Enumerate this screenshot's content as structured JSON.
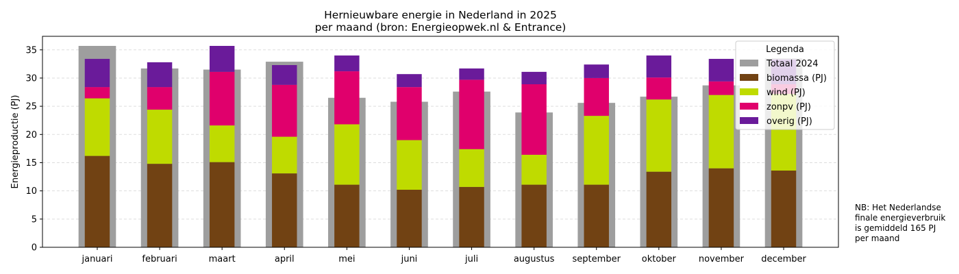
{
  "chart_data": {
    "type": "bar",
    "title_line1": "Hernieuwbare energie in Nederland in 2025",
    "title_line2": "per maand (bron: Energieopwek.nl & Entrance)",
    "xlabel": "",
    "ylabel": "Energieproductie (PJ)",
    "ylim": [
      0,
      37.4
    ],
    "yticks": [
      0,
      5,
      10,
      15,
      20,
      25,
      30,
      35
    ],
    "grid": true,
    "legend_placement": "top-right",
    "legend_title": "Legenda",
    "categories": [
      "januari",
      "februari",
      "maart",
      "april",
      "mei",
      "juni",
      "juli",
      "augustus",
      "september",
      "oktober",
      "november",
      "december"
    ],
    "background_series": {
      "name": "Totaal 2024",
      "color": "#9e9e9e",
      "values": [
        35.7,
        31.7,
        31.5,
        32.9,
        26.5,
        25.8,
        27.6,
        23.9,
        25.6,
        26.7,
        28.7,
        33.5
      ]
    },
    "series": [
      {
        "name": "biomassa (PJ)",
        "color": "#714213",
        "values": [
          16.2,
          14.8,
          15.1,
          13.1,
          11.1,
          10.2,
          10.7,
          11.1,
          11.1,
          13.4,
          14.0,
          13.6
        ]
      },
      {
        "name": "wind (PJ)",
        "color": "#bfdb00",
        "values": [
          10.2,
          9.6,
          6.5,
          6.5,
          10.7,
          8.8,
          6.7,
          5.3,
          12.2,
          12.8,
          13.0,
          13.6
        ]
      },
      {
        "name": "zonpv (PJ)",
        "color": "#e0006c",
        "values": [
          2.0,
          4.0,
          9.5,
          9.2,
          9.4,
          9.4,
          12.3,
          12.5,
          6.7,
          3.9,
          2.4,
          1.7
        ]
      },
      {
        "name": "overig (PJ)",
        "color": "#6a1b9a",
        "values": [
          5.0,
          4.4,
          4.6,
          3.5,
          2.8,
          2.3,
          2.0,
          2.2,
          2.4,
          3.9,
          4.0,
          4.4
        ]
      }
    ]
  },
  "note": [
    "NB: Het Nederlandse",
    "finale energieverbruik",
    "is gemiddeld 165 PJ",
    "per maand"
  ]
}
